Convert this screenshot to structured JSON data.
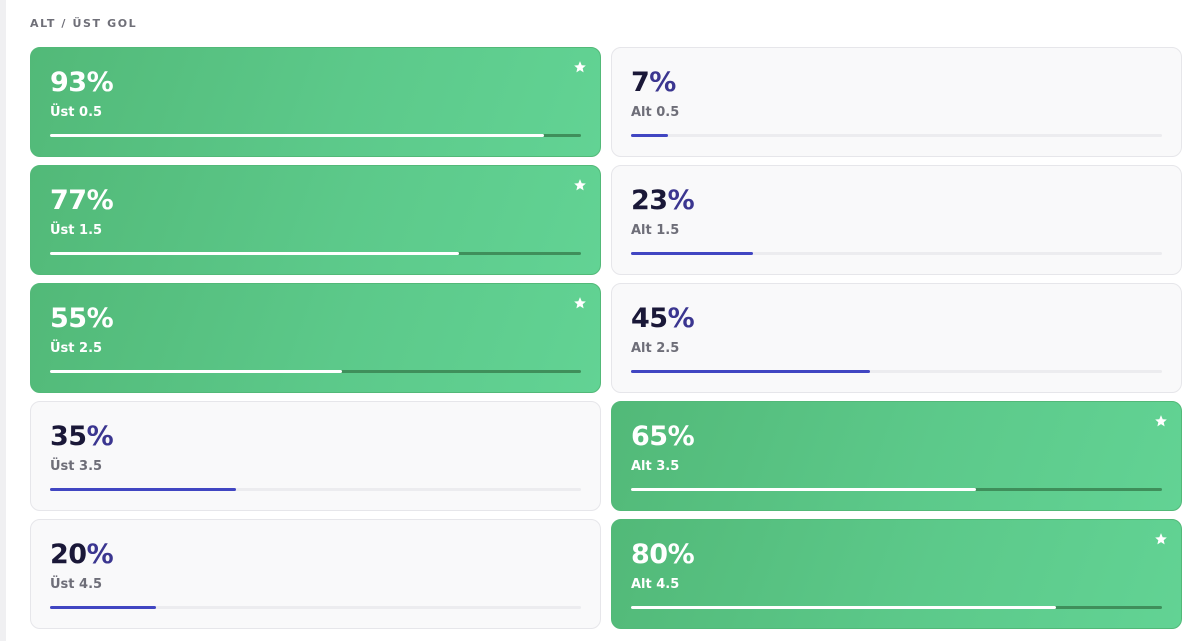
{
  "section": {
    "title": "ALT / ÜST GOL"
  },
  "cards": [
    {
      "number": "93",
      "sign": "%",
      "label": "Üst 0.5",
      "fraction": 0.93,
      "highlight": true
    },
    {
      "number": "7",
      "sign": "%",
      "label": "Alt 0.5",
      "fraction": 0.07,
      "highlight": false
    },
    {
      "number": "77",
      "sign": "%",
      "label": "Üst 1.5",
      "fraction": 0.77,
      "highlight": true
    },
    {
      "number": "23",
      "sign": "%",
      "label": "Alt 1.5",
      "fraction": 0.23,
      "highlight": false
    },
    {
      "number": "55",
      "sign": "%",
      "label": "Üst 2.5",
      "fraction": 0.55,
      "highlight": true
    },
    {
      "number": "45",
      "sign": "%",
      "label": "Alt 2.5",
      "fraction": 0.45,
      "highlight": false
    },
    {
      "number": "35",
      "sign": "%",
      "label": "Üst 3.5",
      "fraction": 0.35,
      "highlight": false
    },
    {
      "number": "65",
      "sign": "%",
      "label": "Alt 3.5",
      "fraction": 0.65,
      "highlight": true
    },
    {
      "number": "20",
      "sign": "%",
      "label": "Üst 4.5",
      "fraction": 0.2,
      "highlight": false
    },
    {
      "number": "80",
      "sign": "%",
      "label": "Alt 4.5",
      "fraction": 0.8,
      "highlight": true
    }
  ],
  "icons": {
    "highlight_marker": "star-icon"
  },
  "colors": {
    "highlight_card": "#5cc98a",
    "plain_card": "#f9f9fa",
    "plain_bar_fill": "#4146c2",
    "percent_text": "#1a1838"
  }
}
